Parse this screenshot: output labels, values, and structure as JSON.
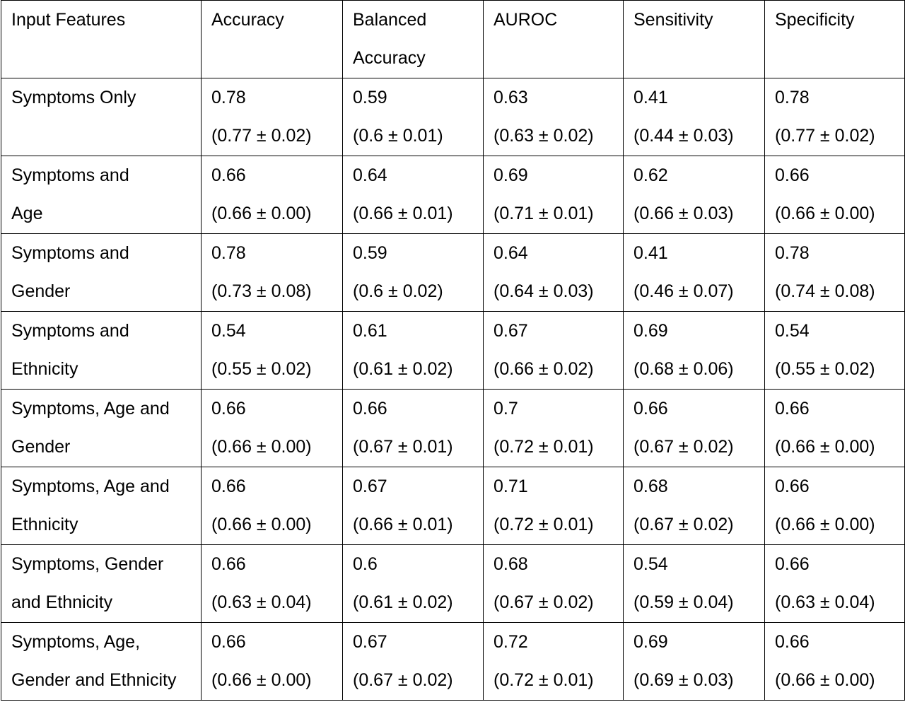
{
  "chart_data": {
    "type": "table",
    "columns": [
      {
        "lines": [
          "Input Features"
        ]
      },
      {
        "lines": [
          "Accuracy"
        ]
      },
      {
        "lines": [
          "Balanced",
          "Accuracy"
        ]
      },
      {
        "lines": [
          "AUROC"
        ]
      },
      {
        "lines": [
          "Sensitivity"
        ]
      },
      {
        "lines": [
          "Specificity"
        ]
      }
    ],
    "rows": [
      {
        "feature_lines": [
          "Symptoms Only"
        ],
        "cells": [
          {
            "value": "0.78",
            "ci": "(0.77 ± 0.02)"
          },
          {
            "value": "0.59",
            "ci": "(0.6 ± 0.01)"
          },
          {
            "value": "0.63",
            "ci": "(0.63 ± 0.02)"
          },
          {
            "value": "0.41",
            "ci": "(0.44 ± 0.03)"
          },
          {
            "value": "0.78",
            "ci": "(0.77 ± 0.02)"
          }
        ]
      },
      {
        "feature_lines": [
          "Symptoms and",
          "Age"
        ],
        "cells": [
          {
            "value": "0.66",
            "ci": "(0.66 ± 0.00)"
          },
          {
            "value": "0.64",
            "ci": "(0.66 ± 0.01)"
          },
          {
            "value": "0.69",
            "ci": "(0.71 ± 0.01)"
          },
          {
            "value": "0.62",
            "ci": "(0.66 ± 0.03)"
          },
          {
            "value": "0.66",
            "ci": "(0.66 ± 0.00)"
          }
        ]
      },
      {
        "feature_lines": [
          "Symptoms and",
          "Gender"
        ],
        "cells": [
          {
            "value": "0.78",
            "ci": "(0.73 ± 0.08)"
          },
          {
            "value": "0.59",
            "ci": "(0.6 ± 0.02)"
          },
          {
            "value": "0.64",
            "ci": "(0.64 ± 0.03)"
          },
          {
            "value": "0.41",
            "ci": "(0.46 ± 0.07)"
          },
          {
            "value": "0.78",
            "ci": "(0.74 ± 0.08)"
          }
        ]
      },
      {
        "feature_lines": [
          "Symptoms and",
          "Ethnicity"
        ],
        "cells": [
          {
            "value": "0.54",
            "ci": "(0.55 ± 0.02)"
          },
          {
            "value": "0.61",
            "ci": "(0.61 ± 0.02)"
          },
          {
            "value": "0.67",
            "ci": "(0.66 ± 0.02)"
          },
          {
            "value": "0.69",
            "ci": "(0.68 ± 0.06)"
          },
          {
            "value": "0.54",
            "ci": "(0.55 ± 0.02)"
          }
        ]
      },
      {
        "feature_lines": [
          "Symptoms, Age and",
          "Gender"
        ],
        "cells": [
          {
            "value": "0.66",
            "ci": "(0.66 ± 0.00)"
          },
          {
            "value": "0.66",
            "ci": "(0.67 ± 0.01)"
          },
          {
            "value": "0.7",
            "ci": "(0.72 ± 0.01)"
          },
          {
            "value": "0.66",
            "ci": "(0.67 ± 0.02)"
          },
          {
            "value": "0.66",
            "ci": "(0.66 ± 0.00)"
          }
        ]
      },
      {
        "feature_lines": [
          "Symptoms, Age and",
          "Ethnicity"
        ],
        "cells": [
          {
            "value": "0.66",
            "ci": "(0.66 ± 0.00)"
          },
          {
            "value": "0.67",
            "ci": "(0.66 ± 0.01)"
          },
          {
            "value": "0.71",
            "ci": "(0.72 ± 0.01)"
          },
          {
            "value": "0.68",
            "ci": "(0.67 ± 0.02)"
          },
          {
            "value": "0.66",
            "ci": "(0.66 ± 0.00)"
          }
        ]
      },
      {
        "feature_lines": [
          "Symptoms, Gender",
          "and Ethnicity"
        ],
        "cells": [
          {
            "value": "0.66",
            "ci": "(0.63 ± 0.04)"
          },
          {
            "value": "0.6",
            "ci": "(0.61 ± 0.02)"
          },
          {
            "value": "0.68",
            "ci": "(0.67 ± 0.02)"
          },
          {
            "value": "0.54",
            "ci": "(0.59 ± 0.04)"
          },
          {
            "value": "0.66",
            "ci": "(0.63 ± 0.04)"
          }
        ]
      },
      {
        "feature_lines": [
          "Symptoms, Age,",
          "Gender and Ethnicity"
        ],
        "cells": [
          {
            "value": "0.66",
            "ci": "(0.66 ± 0.00)"
          },
          {
            "value": "0.67",
            "ci": "(0.67 ± 0.02)"
          },
          {
            "value": "0.72",
            "ci": "(0.72 ± 0.01)"
          },
          {
            "value": "0.69",
            "ci": "(0.69 ± 0.03)"
          },
          {
            "value": "0.66",
            "ci": "(0.66 ± 0.00)"
          }
        ]
      }
    ]
  }
}
